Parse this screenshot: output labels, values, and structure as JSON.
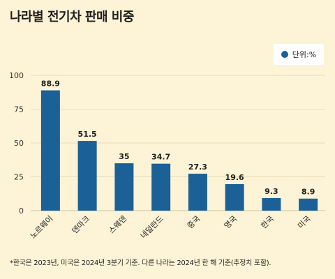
{
  "title": "나라별 전기차 판매 비중",
  "legend": {
    "label": "단위:%"
  },
  "footnote": "*한국은 2023년, 미국은 2024년 3분기 기준. 다른 나라는 2024년 한 해 기준(추정치 포함).",
  "colors": {
    "bar": "#1b6096",
    "background": "#fdf3d6",
    "grid": "#e8dcb8"
  },
  "chart_data": {
    "type": "bar",
    "categories": [
      "노르웨이",
      "덴마크",
      "스웨덴",
      "네덜란드",
      "중국",
      "영국",
      "한국",
      "미국"
    ],
    "values": [
      88.9,
      51.5,
      35,
      34.7,
      27.3,
      19.6,
      9.3,
      8.9
    ],
    "value_labels": [
      "88.9",
      "51.5",
      "35",
      "34.7",
      "27.3",
      "19.6",
      "9.3",
      "8.9"
    ],
    "ylim": [
      0,
      100
    ],
    "yticks": [
      "0",
      "25",
      "50",
      "75",
      "100"
    ],
    "grid": true,
    "legend_position": "top-right"
  }
}
